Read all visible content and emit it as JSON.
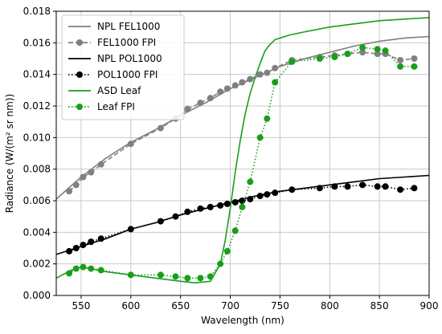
{
  "chart_data": {
    "type": "line",
    "title": "",
    "xlabel": "Wavelength (nm)",
    "ylabel": "Radiance (W/(m² sr nm))",
    "xlim": [
      525,
      900
    ],
    "ylim": [
      0,
      0.018
    ],
    "xticks": [
      550,
      600,
      650,
      700,
      750,
      800,
      850,
      900
    ],
    "yticks": [
      0.0,
      0.002,
      0.004,
      0.006,
      0.008,
      0.01,
      0.012,
      0.014,
      0.016,
      0.018
    ],
    "ytick_labels": [
      "0.000",
      "0.002",
      "0.004",
      "0.006",
      "0.008",
      "0.010",
      "0.012",
      "0.014",
      "0.016",
      "0.018"
    ],
    "grid": true,
    "legend_position": "top-left",
    "series": [
      {
        "name": "NPL FEL1000",
        "color": "#808080",
        "style": "line",
        "x": [
          525,
          550,
          575,
          600,
          625,
          650,
          675,
          700,
          725,
          750,
          775,
          800,
          825,
          850,
          875,
          900
        ],
        "y": [
          0.0061,
          0.0075,
          0.0087,
          0.0097,
          0.0105,
          0.0114,
          0.0122,
          0.0131,
          0.0138,
          0.0145,
          0.015,
          0.0154,
          0.0158,
          0.0161,
          0.0163,
          0.0164
        ]
      },
      {
        "name": "FEL1000 FPI",
        "color": "#808080",
        "style": "dashed-markers",
        "x": [
          538,
          545,
          552,
          560,
          570,
          600,
          630,
          645,
          657,
          670,
          680,
          690,
          697,
          705,
          712,
          720,
          730,
          737,
          745,
          762,
          790,
          805,
          818,
          833,
          848,
          856,
          871,
          885
        ],
        "y": [
          0.0066,
          0.007,
          0.0075,
          0.0078,
          0.0083,
          0.0096,
          0.0106,
          0.0112,
          0.0118,
          0.0122,
          0.0125,
          0.0129,
          0.0131,
          0.0133,
          0.0135,
          0.0137,
          0.014,
          0.0141,
          0.0144,
          0.0149,
          0.0151,
          0.0152,
          0.0153,
          0.0154,
          0.0153,
          0.0153,
          0.0149,
          0.015
        ]
      },
      {
        "name": "NPL POL1000",
        "color": "#000000",
        "style": "line",
        "x": [
          525,
          550,
          575,
          600,
          625,
          650,
          675,
          700,
          725,
          750,
          775,
          800,
          825,
          850,
          875,
          900
        ],
        "y": [
          0.0026,
          0.0031,
          0.0036,
          0.0042,
          0.0046,
          0.0051,
          0.0055,
          0.0059,
          0.0063,
          0.0066,
          0.0068,
          0.007,
          0.0072,
          0.0074,
          0.0075,
          0.0076
        ]
      },
      {
        "name": "POL1000 FPI",
        "color": "#000000",
        "style": "dotted-markers",
        "x": [
          538,
          545,
          552,
          560,
          570,
          600,
          630,
          645,
          657,
          670,
          680,
          690,
          697,
          705,
          712,
          720,
          730,
          737,
          745,
          762,
          790,
          805,
          818,
          833,
          848,
          856,
          871,
          885
        ],
        "y": [
          0.0028,
          0.003,
          0.0032,
          0.0034,
          0.0036,
          0.0042,
          0.0047,
          0.005,
          0.0053,
          0.0055,
          0.0056,
          0.0057,
          0.0058,
          0.0059,
          0.006,
          0.0061,
          0.0063,
          0.0064,
          0.0065,
          0.0067,
          0.0068,
          0.0069,
          0.0069,
          0.007,
          0.0069,
          0.0069,
          0.0067,
          0.0068
        ]
      },
      {
        "name": "ASD Leaf",
        "color": "#1a9e1a",
        "style": "line",
        "x": [
          525,
          540,
          550,
          560,
          575,
          600,
          625,
          650,
          665,
          680,
          690,
          695,
          700,
          705,
          710,
          715,
          720,
          725,
          730,
          735,
          740,
          745,
          750,
          760,
          775,
          800,
          825,
          850,
          875,
          900
        ],
        "y": [
          0.0011,
          0.0016,
          0.0018,
          0.0017,
          0.0015,
          0.0013,
          0.0011,
          0.0009,
          0.0008,
          0.0009,
          0.002,
          0.0035,
          0.0055,
          0.0078,
          0.0098,
          0.0115,
          0.0128,
          0.0138,
          0.0147,
          0.0155,
          0.0159,
          0.0162,
          0.0163,
          0.0165,
          0.0167,
          0.017,
          0.0172,
          0.0174,
          0.0175,
          0.0176
        ]
      },
      {
        "name": "Leaf FPI",
        "color": "#1a9e1a",
        "style": "dotted-markers",
        "x": [
          538,
          545,
          552,
          560,
          570,
          600,
          630,
          645,
          657,
          670,
          680,
          690,
          697,
          705,
          712,
          720,
          730,
          737,
          745,
          762,
          790,
          805,
          818,
          833,
          848,
          856,
          871,
          885
        ],
        "y": [
          0.0014,
          0.0017,
          0.0018,
          0.0017,
          0.0016,
          0.0013,
          0.0013,
          0.0012,
          0.0011,
          0.0011,
          0.0012,
          0.002,
          0.0028,
          0.0041,
          0.0056,
          0.0072,
          0.01,
          0.0112,
          0.0135,
          0.0148,
          0.015,
          0.0151,
          0.0153,
          0.0157,
          0.0156,
          0.0155,
          0.0145,
          0.0145
        ]
      }
    ]
  }
}
